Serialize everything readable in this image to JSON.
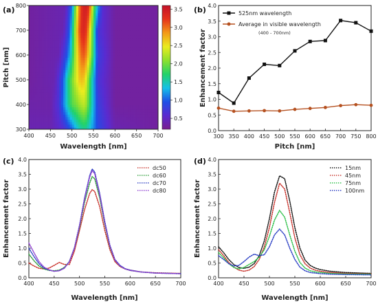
{
  "chart_data": [
    {
      "panel_label": "(a)",
      "type": "heatmap",
      "xlabel": "Wavelength [nm]",
      "ylabel": "Pitch [nm]",
      "xlim": [
        400,
        700
      ],
      "ylim": [
        300,
        800
      ],
      "x_ticks": [
        "400",
        "450",
        "500",
        "550",
        "600",
        "650",
        "700"
      ],
      "y_ticks": [
        "300",
        "400",
        "500",
        "600",
        "700",
        "800"
      ],
      "colorbar": {
        "range": [
          0.2,
          3.6
        ],
        "ticks": [
          "0.5",
          "1.0",
          "1.5",
          "2.0",
          "2.5",
          "3.0",
          "3.5"
        ],
        "colors": [
          "#7a1f8f",
          "#5a2bd0",
          "#1f4fe6",
          "#15c0e8",
          "#22d26a",
          "#8de02e",
          "#eaec1f",
          "#f39a18",
          "#e6341b",
          "#c4122a"
        ]
      },
      "intensity_bands": [
        {
          "pitch": 300,
          "x": [
            400,
            450,
            480,
            500,
            510,
            520,
            530,
            540,
            560,
            600,
            700
          ],
          "values": [
            0.4,
            0.4,
            0.6,
            1.0,
            1.3,
            1.5,
            1.6,
            1.4,
            0.9,
            0.4,
            0.3
          ]
        },
        {
          "pitch": 400,
          "x": [
            400,
            450,
            470,
            490,
            500,
            510,
            520,
            530,
            540,
            560,
            600,
            700
          ],
          "values": [
            0.35,
            0.35,
            0.7,
            1.5,
            1.9,
            2.0,
            2.2,
            2.3,
            1.8,
            0.8,
            0.3,
            0.3
          ]
        },
        {
          "pitch": 500,
          "x": [
            400,
            460,
            480,
            490,
            500,
            510,
            520,
            530,
            540,
            560,
            600,
            700
          ],
          "values": [
            0.3,
            0.4,
            1.0,
            1.6,
            2.0,
            2.4,
            2.7,
            2.6,
            1.9,
            0.7,
            0.3,
            0.3
          ]
        },
        {
          "pitch": 600,
          "x": [
            400,
            470,
            490,
            500,
            510,
            520,
            530,
            540,
            560,
            600,
            700
          ],
          "values": [
            0.3,
            0.4,
            1.0,
            1.6,
            2.4,
            3.0,
            3.1,
            2.5,
            0.8,
            0.3,
            0.3
          ]
        },
        {
          "pitch": 700,
          "x": [
            400,
            480,
            495,
            505,
            515,
            525,
            535,
            545,
            560,
            600,
            700
          ],
          "values": [
            0.3,
            0.4,
            1.0,
            1.9,
            3.0,
            3.4,
            3.2,
            2.2,
            0.7,
            0.3,
            0.3
          ]
        },
        {
          "pitch": 800,
          "x": [
            400,
            485,
            500,
            510,
            520,
            530,
            540,
            550,
            570,
            600,
            700
          ],
          "values": [
            0.3,
            0.4,
            1.1,
            2.2,
            3.2,
            3.5,
            3.3,
            2.0,
            0.6,
            0.3,
            0.3
          ]
        }
      ]
    },
    {
      "panel_label": "(b)",
      "type": "line",
      "xlabel": "Pitch [nm]",
      "ylabel": "Enhancement factor",
      "xlim": [
        300,
        800
      ],
      "ylim": [
        0.0,
        4.0
      ],
      "x_ticks": [
        "300",
        "350",
        "400",
        "450",
        "500",
        "550",
        "600",
        "650",
        "700",
        "750",
        "800"
      ],
      "y_ticks": [
        "0.0",
        "0.5",
        "1.0",
        "1.5",
        "2.0",
        "2.5",
        "3.0",
        "3.5",
        "4.0"
      ],
      "legend_position": "top-left",
      "legend_note": "(400 - 700nm)",
      "series": [
        {
          "name": "525nm wavelength",
          "color": "#111111",
          "x": [
            300,
            350,
            400,
            450,
            500,
            550,
            600,
            650,
            700,
            750,
            800
          ],
          "y": [
            1.22,
            0.88,
            1.68,
            2.12,
            2.08,
            2.55,
            2.85,
            2.88,
            3.52,
            3.45,
            3.18
          ]
        },
        {
          "name": "Average in visible wavelength",
          "color": "#b5501f",
          "x": [
            300,
            350,
            400,
            450,
            500,
            550,
            600,
            650,
            700,
            750,
            800
          ],
          "y": [
            0.72,
            0.62,
            0.63,
            0.64,
            0.63,
            0.68,
            0.71,
            0.74,
            0.8,
            0.83,
            0.81
          ]
        }
      ]
    },
    {
      "panel_label": "(c)",
      "type": "line",
      "xlabel": "Wavelength [nm]",
      "ylabel": "Enhancement factor",
      "xlim": [
        400,
        700
      ],
      "ylim": [
        0.0,
        4.0
      ],
      "x_ticks": [
        "400",
        "450",
        "500",
        "550",
        "600",
        "650",
        "700"
      ],
      "y_ticks": [
        "0.0",
        "0.5",
        "1.0",
        "1.5",
        "2.0",
        "2.5",
        "3.0",
        "3.5",
        "4.0"
      ],
      "legend_position": "top-right",
      "series": [
        {
          "name": "dc50",
          "color": "#c8322b",
          "x": [
            400,
            410,
            420,
            430,
            440,
            450,
            460,
            470,
            480,
            490,
            500,
            510,
            520,
            525,
            530,
            540,
            550,
            560,
            570,
            580,
            590,
            600,
            620,
            650,
            700
          ],
          "y": [
            0.5,
            0.4,
            0.32,
            0.3,
            0.33,
            0.42,
            0.52,
            0.45,
            0.45,
            0.9,
            1.6,
            2.3,
            2.85,
            2.98,
            2.92,
            2.4,
            1.6,
            0.95,
            0.55,
            0.38,
            0.3,
            0.26,
            0.2,
            0.17,
            0.15
          ]
        },
        {
          "name": "dc60",
          "color": "#2e9d3a",
          "x": [
            400,
            410,
            420,
            430,
            440,
            450,
            460,
            470,
            480,
            490,
            500,
            510,
            520,
            525,
            530,
            540,
            550,
            560,
            570,
            580,
            590,
            600,
            620,
            650,
            700
          ],
          "y": [
            0.8,
            0.58,
            0.4,
            0.3,
            0.25,
            0.24,
            0.26,
            0.35,
            0.55,
            1.0,
            1.7,
            2.55,
            3.2,
            3.42,
            3.35,
            2.7,
            1.8,
            1.05,
            0.6,
            0.4,
            0.3,
            0.25,
            0.2,
            0.16,
            0.14
          ]
        },
        {
          "name": "dc70",
          "color": "#2b3fc4",
          "x": [
            400,
            410,
            420,
            430,
            440,
            450,
            460,
            470,
            480,
            490,
            500,
            510,
            520,
            525,
            530,
            540,
            550,
            560,
            570,
            580,
            590,
            600,
            620,
            650,
            700
          ],
          "y": [
            1.0,
            0.72,
            0.48,
            0.33,
            0.26,
            0.22,
            0.24,
            0.33,
            0.55,
            1.02,
            1.78,
            2.7,
            3.45,
            3.68,
            3.58,
            2.85,
            1.9,
            1.1,
            0.62,
            0.42,
            0.31,
            0.26,
            0.2,
            0.16,
            0.14
          ]
        },
        {
          "name": "dc80",
          "color": "#8e3fd0",
          "x": [
            400,
            410,
            420,
            430,
            440,
            450,
            460,
            470,
            480,
            490,
            500,
            510,
            520,
            525,
            530,
            540,
            550,
            560,
            570,
            580,
            590,
            600,
            620,
            650,
            700
          ],
          "y": [
            1.18,
            0.85,
            0.55,
            0.36,
            0.27,
            0.22,
            0.24,
            0.32,
            0.54,
            1.0,
            1.75,
            2.65,
            3.4,
            3.62,
            3.52,
            2.8,
            1.85,
            1.08,
            0.6,
            0.4,
            0.3,
            0.25,
            0.2,
            0.16,
            0.14
          ]
        }
      ]
    },
    {
      "panel_label": "(d)",
      "type": "line",
      "xlabel": "Wavelength [nm]",
      "ylabel": "Enhancement factor",
      "xlim": [
        400,
        700
      ],
      "ylim": [
        0.0,
        4.0
      ],
      "x_ticks": [
        "400",
        "450",
        "500",
        "550",
        "600",
        "650",
        "700"
      ],
      "y_ticks": [
        "0.0",
        "0.5",
        "1.0",
        "1.5",
        "2.0",
        "2.5",
        "3.0",
        "3.5",
        "4.0"
      ],
      "legend_position": "top-right",
      "series": [
        {
          "name": "15nm",
          "color": "#111111",
          "x": [
            400,
            410,
            420,
            430,
            440,
            450,
            460,
            470,
            480,
            490,
            500,
            510,
            520,
            530,
            540,
            550,
            560,
            570,
            580,
            590,
            600,
            620,
            650,
            700
          ],
          "y": [
            1.05,
            0.85,
            0.62,
            0.45,
            0.35,
            0.32,
            0.36,
            0.48,
            0.75,
            1.25,
            2.0,
            2.9,
            3.45,
            3.35,
            2.6,
            1.7,
            1.0,
            0.6,
            0.42,
            0.33,
            0.28,
            0.22,
            0.18,
            0.15
          ]
        },
        {
          "name": "45nm",
          "color": "#c8322b",
          "x": [
            400,
            410,
            420,
            430,
            440,
            450,
            460,
            470,
            480,
            490,
            500,
            510,
            520,
            530,
            540,
            550,
            560,
            570,
            580,
            590,
            600,
            620,
            650,
            700
          ],
          "y": [
            0.95,
            0.75,
            0.52,
            0.36,
            0.26,
            0.22,
            0.26,
            0.38,
            0.62,
            1.05,
            1.7,
            2.55,
            3.2,
            3.0,
            2.2,
            1.35,
            0.78,
            0.48,
            0.33,
            0.26,
            0.22,
            0.18,
            0.15,
            0.13
          ]
        },
        {
          "name": "75nm",
          "color": "#2ec04a",
          "x": [
            400,
            410,
            420,
            430,
            440,
            450,
            460,
            470,
            480,
            490,
            500,
            510,
            520,
            530,
            540,
            550,
            560,
            570,
            580,
            590,
            600,
            620,
            650,
            700
          ],
          "y": [
            0.85,
            0.68,
            0.48,
            0.35,
            0.3,
            0.35,
            0.45,
            0.55,
            0.7,
            0.95,
            1.4,
            1.95,
            2.28,
            2.05,
            1.45,
            0.9,
            0.52,
            0.33,
            0.24,
            0.2,
            0.18,
            0.15,
            0.13,
            0.12
          ]
        },
        {
          "name": "100nm",
          "color": "#2b3fc4",
          "x": [
            400,
            410,
            420,
            430,
            440,
            450,
            460,
            470,
            480,
            490,
            500,
            510,
            520,
            530,
            540,
            550,
            560,
            570,
            580,
            590,
            600,
            620,
            650,
            700
          ],
          "y": [
            0.75,
            0.62,
            0.48,
            0.4,
            0.42,
            0.55,
            0.7,
            0.8,
            0.75,
            0.78,
            1.05,
            1.45,
            1.65,
            1.45,
            1.0,
            0.62,
            0.36,
            0.24,
            0.18,
            0.16,
            0.14,
            0.12,
            0.11,
            0.1
          ]
        }
      ]
    }
  ]
}
